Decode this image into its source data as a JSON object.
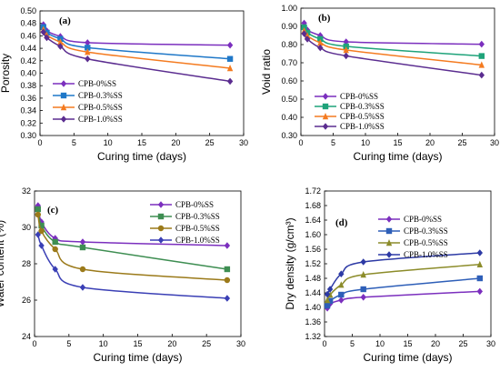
{
  "chart_data": [
    {
      "type": "line",
      "panel": "(a)",
      "xlabel": "Curing time (days)",
      "ylabel": "Porosity",
      "xlim": [
        0,
        30
      ],
      "ylim": [
        0.3,
        0.5
      ],
      "x_ticks": [
        "0",
        "5",
        "10",
        "15",
        "20",
        "25",
        "30"
      ],
      "y_ticks": [
        "0.30",
        "0.32",
        "0.34",
        "0.36",
        "0.38",
        "0.40",
        "0.42",
        "0.44",
        "0.46",
        "0.48",
        "0.50"
      ],
      "legend": "bottom-left",
      "series": [
        {
          "name": "CPB-0%SS",
          "color": "#7B2FBE",
          "marker": "diamond",
          "x": [
            0.5,
            1,
            3,
            7,
            28
          ],
          "y": [
            0.478,
            0.468,
            0.459,
            0.449,
            0.445
          ]
        },
        {
          "name": "CPB-0.3%SS",
          "color": "#1F78C8",
          "marker": "square",
          "x": [
            0.5,
            1,
            3,
            7,
            28
          ],
          "y": [
            0.474,
            0.465,
            0.455,
            0.441,
            0.423
          ]
        },
        {
          "name": "CPB-0.5%SS",
          "color": "#F47B20",
          "marker": "triangle",
          "x": [
            0.5,
            1,
            3,
            7,
            28
          ],
          "y": [
            0.47,
            0.461,
            0.45,
            0.434,
            0.408
          ]
        },
        {
          "name": "CPB-1.0%SS",
          "color": "#5B2D90",
          "marker": "diamond",
          "x": [
            0.5,
            1,
            3,
            7,
            28
          ],
          "y": [
            0.466,
            0.457,
            0.443,
            0.423,
            0.387
          ]
        }
      ]
    },
    {
      "type": "line",
      "panel": "(b)",
      "xlabel": "Curing time (days)",
      "ylabel": "Void ratio",
      "xlim": [
        0,
        30
      ],
      "ylim": [
        0.3,
        1.0
      ],
      "x_ticks": [
        "0",
        "5",
        "10",
        "15",
        "20",
        "25",
        "30"
      ],
      "y_ticks": [
        "0.30",
        "0.40",
        "0.50",
        "0.60",
        "0.70",
        "0.80",
        "0.90",
        "1.00"
      ],
      "legend": "bottom-left",
      "series": [
        {
          "name": "CPB-0%SS",
          "color": "#7B2FBE",
          "marker": "diamond",
          "x": [
            0.5,
            1,
            3,
            7,
            28
          ],
          "y": [
            0.918,
            0.88,
            0.85,
            0.815,
            0.802
          ]
        },
        {
          "name": "CPB-0.3%SS",
          "color": "#1FA37A",
          "marker": "square",
          "x": [
            0.5,
            1,
            3,
            7,
            28
          ],
          "y": [
            0.895,
            0.865,
            0.83,
            0.79,
            0.737
          ]
        },
        {
          "name": "CPB-0.5%SS",
          "color": "#F47B20",
          "marker": "triangle",
          "x": [
            0.5,
            1,
            3,
            7,
            28
          ],
          "y": [
            0.875,
            0.848,
            0.81,
            0.77,
            0.688
          ]
        },
        {
          "name": "CPB-1.0%SS",
          "color": "#5B2D90",
          "marker": "diamond",
          "x": [
            0.5,
            1,
            3,
            7,
            28
          ],
          "y": [
            0.86,
            0.83,
            0.782,
            0.738,
            0.632
          ]
        }
      ]
    },
    {
      "type": "line",
      "panel": "(c)",
      "xlabel": "Curing time (days)",
      "ylabel": "Water content (%)",
      "xlim": [
        0,
        30
      ],
      "ylim": [
        24,
        32
      ],
      "x_ticks": [
        "0",
        "5",
        "10",
        "15",
        "20",
        "25",
        "30"
      ],
      "y_ticks": [
        "24",
        "26",
        "28",
        "30",
        "32"
      ],
      "legend": "top-right",
      "series": [
        {
          "name": "CPB-0%SS",
          "color": "#7B2FBE",
          "marker": "diamond",
          "x": [
            0.5,
            1,
            3,
            7,
            28
          ],
          "y": [
            31.2,
            30.3,
            29.4,
            29.2,
            29.0
          ]
        },
        {
          "name": "CPB-0.3%SS",
          "color": "#3E8E52",
          "marker": "square",
          "x": [
            0.5,
            1,
            3,
            7,
            28
          ],
          "y": [
            31.0,
            30.1,
            29.2,
            28.9,
            27.7
          ]
        },
        {
          "name": "CPB-0.5%SS",
          "color": "#9B7A1A",
          "marker": "circle",
          "x": [
            0.5,
            1,
            3,
            7,
            28
          ],
          "y": [
            30.7,
            29.8,
            28.8,
            27.7,
            27.1
          ]
        },
        {
          "name": "CPB-1.0%SS",
          "color": "#3A3FB5",
          "marker": "diamond",
          "x": [
            0.5,
            1,
            3,
            7,
            28
          ],
          "y": [
            29.6,
            29.0,
            27.7,
            26.7,
            26.1
          ]
        }
      ]
    },
    {
      "type": "line",
      "panel": "(d)",
      "xlabel": "Curing time (days)",
      "ylabel": "Dry density (g/cm³)",
      "xlim": [
        0,
        30
      ],
      "ylim": [
        1.32,
        1.72
      ],
      "x_ticks": [
        "0",
        "5",
        "10",
        "15",
        "20",
        "25",
        "30"
      ],
      "y_ticks": [
        "1.32",
        "1.36",
        "1.40",
        "1.44",
        "1.48",
        "1.52",
        "1.56",
        "1.60",
        "1.64",
        "1.68",
        "1.72"
      ],
      "legend": "top-left",
      "series": [
        {
          "name": "CPB-0%SS",
          "color": "#7B2FBE",
          "marker": "diamond",
          "x": [
            0.5,
            1,
            3,
            7,
            28
          ],
          "y": [
            1.398,
            1.41,
            1.42,
            1.428,
            1.444
          ]
        },
        {
          "name": "CPB-0.3%SS",
          "color": "#2E5FB8",
          "marker": "square",
          "x": [
            0.5,
            1,
            3,
            7,
            28
          ],
          "y": [
            1.405,
            1.418,
            1.435,
            1.45,
            1.48
          ]
        },
        {
          "name": "CPB-0.5%SS",
          "color": "#8C8C2A",
          "marker": "triangle",
          "x": [
            0.5,
            1,
            3,
            7,
            28
          ],
          "y": [
            1.42,
            1.435,
            1.462,
            1.49,
            1.518
          ]
        },
        {
          "name": "CPB-1.0%SS",
          "color": "#2D3AA5",
          "marker": "diamond",
          "x": [
            0.5,
            1,
            3,
            7,
            28
          ],
          "y": [
            1.436,
            1.45,
            1.492,
            1.525,
            1.55
          ]
        }
      ]
    }
  ]
}
